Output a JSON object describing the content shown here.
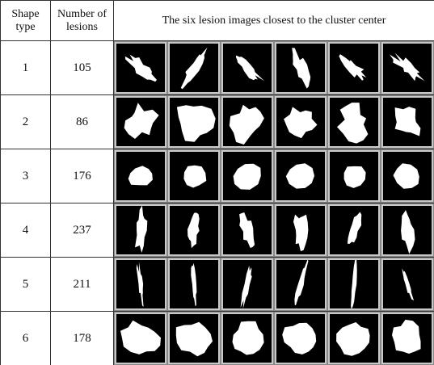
{
  "table": {
    "header": [
      "Shape type",
      "Number of lesions",
      "The six lesion images closest to the cluster center"
    ],
    "rows": [
      [
        1,
        105
      ],
      [
        2,
        86
      ],
      [
        3,
        176
      ],
      [
        4,
        237
      ],
      [
        5,
        211
      ],
      [
        6,
        178
      ]
    ]
  }
}
